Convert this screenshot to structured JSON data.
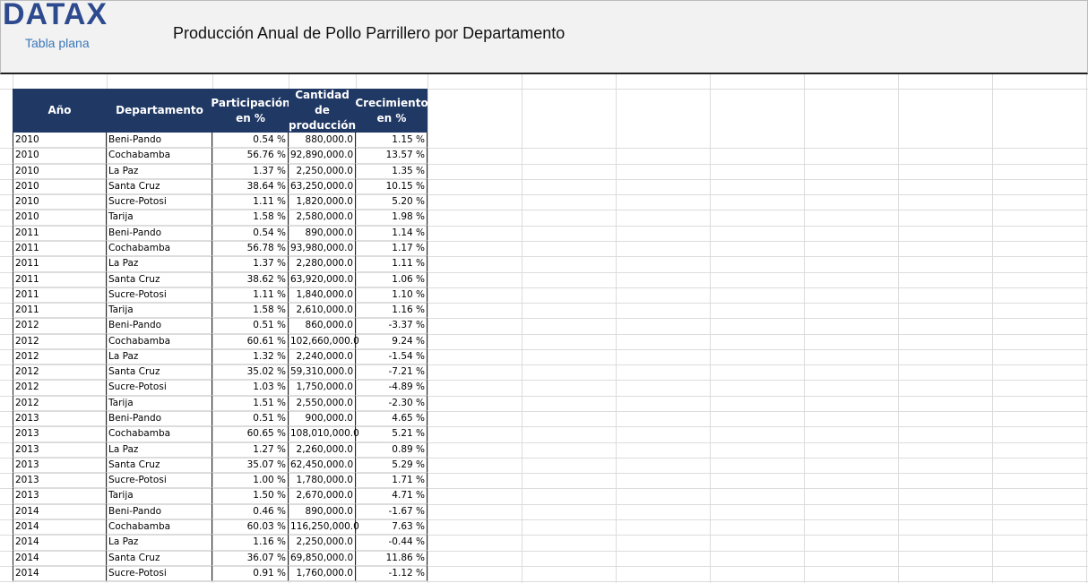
{
  "header": {
    "logo": "DATAX",
    "subtitle": "Tabla plana",
    "title": "Producción Anual de Pollo Parrillero por Departamento"
  },
  "table": {
    "columns": [
      "Año",
      "Departamento",
      "Participación en %",
      "Cantidad de producción",
      "Crecimiento en %"
    ],
    "rows": [
      [
        "2010",
        "Beni-Pando",
        "0.54 %",
        "880,000.0",
        "1.15 %"
      ],
      [
        "2010",
        "Cochabamba",
        "56.76 %",
        "92,890,000.0",
        "13.57 %"
      ],
      [
        "2010",
        "La Paz",
        "1.37 %",
        "2,250,000.0",
        "1.35 %"
      ],
      [
        "2010",
        "Santa Cruz",
        "38.64 %",
        "63,250,000.0",
        "10.15 %"
      ],
      [
        "2010",
        "Sucre-Potosi",
        "1.11 %",
        "1,820,000.0",
        "5.20 %"
      ],
      [
        "2010",
        "Tarija",
        "1.58 %",
        "2,580,000.0",
        "1.98 %"
      ],
      [
        "2011",
        "Beni-Pando",
        "0.54 %",
        "890,000.0",
        "1.14 %"
      ],
      [
        "2011",
        "Cochabamba",
        "56.78 %",
        "93,980,000.0",
        "1.17 %"
      ],
      [
        "2011",
        "La Paz",
        "1.37 %",
        "2,280,000.0",
        "1.11 %"
      ],
      [
        "2011",
        "Santa Cruz",
        "38.62 %",
        "63,920,000.0",
        "1.06 %"
      ],
      [
        "2011",
        "Sucre-Potosi",
        "1.11 %",
        "1,840,000.0",
        "1.10 %"
      ],
      [
        "2011",
        "Tarija",
        "1.58 %",
        "2,610,000.0",
        "1.16 %"
      ],
      [
        "2012",
        "Beni-Pando",
        "0.51 %",
        "860,000.0",
        "-3.37 %"
      ],
      [
        "2012",
        "Cochabamba",
        "60.61 %",
        "102,660,000.0",
        "9.24 %"
      ],
      [
        "2012",
        "La Paz",
        "1.32 %",
        "2,240,000.0",
        "-1.54 %"
      ],
      [
        "2012",
        "Santa Cruz",
        "35.02 %",
        "59,310,000.0",
        "-7.21 %"
      ],
      [
        "2012",
        "Sucre-Potosi",
        "1.03 %",
        "1,750,000.0",
        "-4.89 %"
      ],
      [
        "2012",
        "Tarija",
        "1.51 %",
        "2,550,000.0",
        "-2.30 %"
      ],
      [
        "2013",
        "Beni-Pando",
        "0.51 %",
        "900,000.0",
        "4.65 %"
      ],
      [
        "2013",
        "Cochabamba",
        "60.65 %",
        "108,010,000.0",
        "5.21 %"
      ],
      [
        "2013",
        "La Paz",
        "1.27 %",
        "2,260,000.0",
        "0.89 %"
      ],
      [
        "2013",
        "Santa Cruz",
        "35.07 %",
        "62,450,000.0",
        "5.29 %"
      ],
      [
        "2013",
        "Sucre-Potosi",
        "1.00 %",
        "1,780,000.0",
        "1.71 %"
      ],
      [
        "2013",
        "Tarija",
        "1.50 %",
        "2,670,000.0",
        "4.71 %"
      ],
      [
        "2014",
        "Beni-Pando",
        "0.46 %",
        "890,000.0",
        "-1.67 %"
      ],
      [
        "2014",
        "Cochabamba",
        "60.03 %",
        "116,250,000.0",
        "7.63 %"
      ],
      [
        "2014",
        "La Paz",
        "1.16 %",
        "2,250,000.0",
        "-0.44 %"
      ],
      [
        "2014",
        "Santa Cruz",
        "36.07 %",
        "69,850,000.0",
        "11.86 %"
      ],
      [
        "2014",
        "Sucre-Potosi",
        "0.91 %",
        "1,760,000.0",
        "-1.12 %"
      ]
    ]
  }
}
